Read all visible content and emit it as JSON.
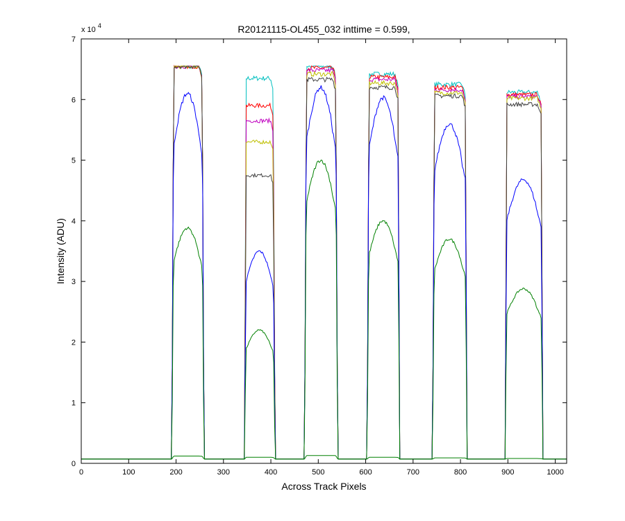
{
  "chart_data": {
    "type": "line",
    "title": "R20121115-OL455_032 inttime = 0.599,",
    "xlabel": "Across Track Pixels",
    "ylabel": "Intensity (ADU)",
    "y_multiplier_base": "x 10",
    "y_multiplier_exponent": "4",
    "xlim": [
      0,
      1024
    ],
    "ylim": [
      0,
      70000
    ],
    "x_ticks": [
      0,
      100,
      200,
      300,
      400,
      500,
      600,
      700,
      800,
      900,
      1000
    ],
    "y_ticks": [
      0,
      10000,
      20000,
      30000,
      40000,
      50000,
      60000,
      70000
    ],
    "x_tick_labels": [
      "0",
      "100",
      "200",
      "300",
      "400",
      "500",
      "600",
      "700",
      "800",
      "900",
      "1000"
    ],
    "y_tick_labels": [
      "0",
      "1",
      "2",
      "3",
      "4",
      "5",
      "6",
      "7"
    ],
    "grid": false,
    "baseline": 700,
    "plateaus": [
      {
        "start": 195,
        "end": 255
      },
      {
        "start": 348,
        "end": 405
      },
      {
        "start": 475,
        "end": 537
      },
      {
        "start": 607,
        "end": 668
      },
      {
        "start": 745,
        "end": 810
      },
      {
        "start": 898,
        "end": 970
      }
    ],
    "series": [
      {
        "color": "#00bfbf",
        "levels": [
          65500,
          63500,
          65500,
          64200,
          62500,
          61200
        ],
        "shape": "flat"
      },
      {
        "color": "#ff0000",
        "levels": [
          65500,
          59000,
          65200,
          63700,
          62000,
          60800
        ],
        "shape": "flat"
      },
      {
        "color": "#bf00bf",
        "levels": [
          65500,
          56500,
          64800,
          63300,
          61600,
          60500
        ],
        "shape": "flat"
      },
      {
        "color": "#bfbf00",
        "levels": [
          65500,
          53000,
          64200,
          62700,
          61100,
          60200
        ],
        "shape": "flat"
      },
      {
        "color": "#404040",
        "levels": [
          65500,
          47500,
          63300,
          62000,
          60600,
          59200
        ],
        "shape": "flat"
      },
      {
        "color": "#0000ff",
        "levels": [
          61000,
          35000,
          62000,
          60300,
          56000,
          46800
        ],
        "shape": "hump"
      },
      {
        "color": "#008000",
        "levels": [
          38800,
          22000,
          50000,
          40000,
          37000,
          28800
        ],
        "shape": "hump"
      },
      {
        "color": "#008000",
        "levels": [
          1200,
          1000,
          1300,
          1000,
          900,
          800
        ],
        "shape": "flat"
      }
    ]
  }
}
